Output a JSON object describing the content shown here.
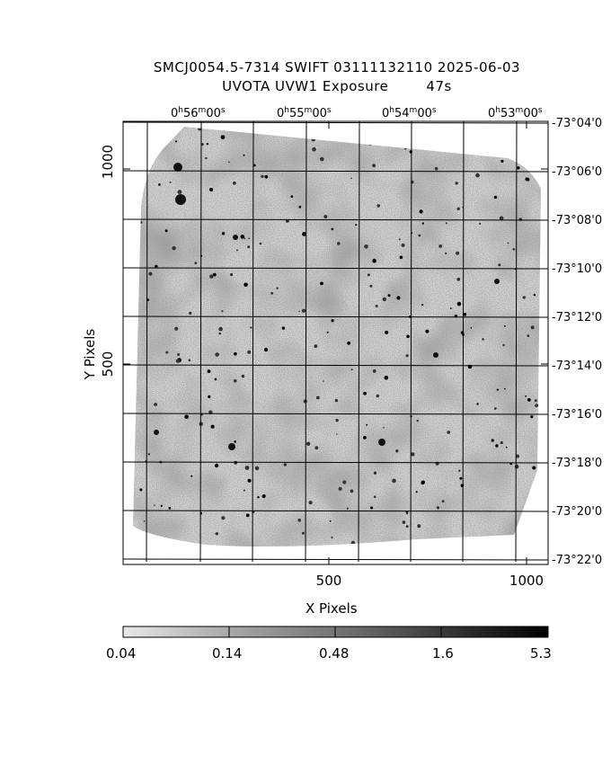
{
  "header": {
    "title_line1": "SMCJ0054.5-7314 SWIFT 03111132110 2025-06-03",
    "title_line2": "UVOTA UVW1 Exposure        47s"
  },
  "axes": {
    "xlabel": "X Pixels",
    "ylabel": "Y Pixels",
    "x_ticks": [
      "500",
      "1000"
    ],
    "y_ticks": [
      "500",
      "1000"
    ],
    "ra_ticks": [
      {
        "h": "0",
        "m": "56",
        "s": "00"
      },
      {
        "h": "0",
        "m": "55",
        "s": "00"
      },
      {
        "h": "0",
        "m": "54",
        "s": "00"
      },
      {
        "h": "0",
        "m": "53",
        "s": "00"
      }
    ],
    "dec_ticks": [
      "-73°04'0",
      "-73°06'0",
      "-73°08'0",
      "-73°10'0",
      "-73°12'0",
      "-73°14'0",
      "-73°16'0",
      "-73°18'0",
      "-73°20'0",
      "-73°22'0"
    ]
  },
  "colorbar": {
    "labels": [
      "0.04",
      "0.14",
      "0.48",
      "1.6",
      "5.3"
    ],
    "colors": {
      "low": "#e6e6e6",
      "high": "#000000"
    }
  },
  "image": {
    "scene": "grayscale UVW1 exposure map of star field with grid overlay",
    "colors": {
      "background": "#ffffff",
      "frame": "#000000"
    }
  }
}
